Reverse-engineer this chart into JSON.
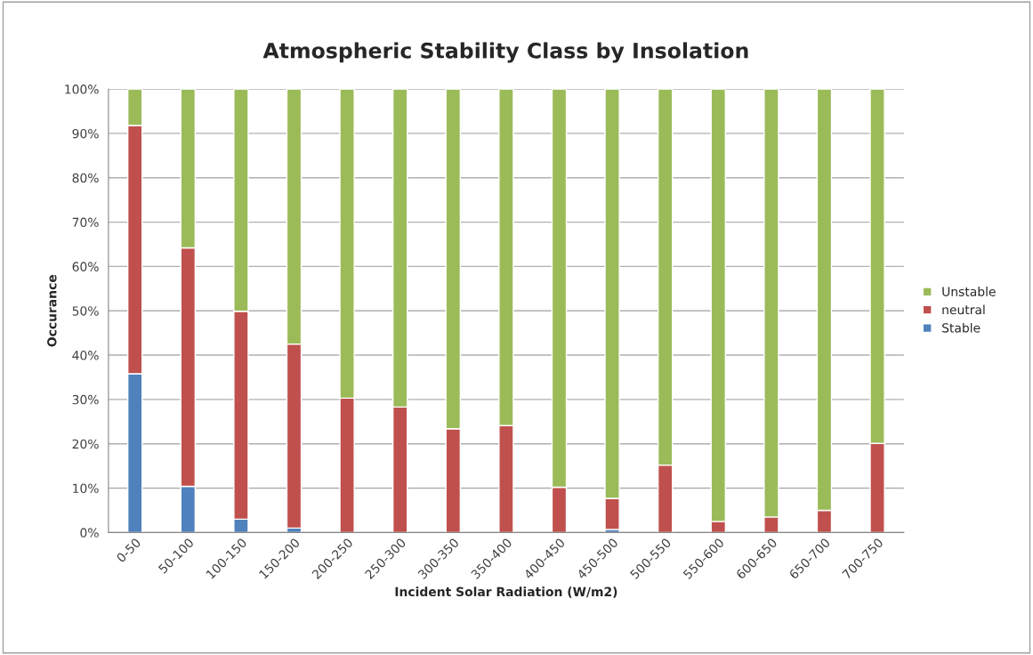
{
  "chart_data": {
    "type": "bar",
    "title": "Atmospheric Stability Class by Insolation",
    "xlabel": "Incident Solar Radiation (W/m2)",
    "ylabel": "Occurance",
    "categories": [
      "0-50",
      "50-100",
      "100-150",
      "150-200",
      "200-250",
      "250-300",
      "300-350",
      "350-400",
      "400-450",
      "450-500",
      "500-550",
      "550-600",
      "600-650",
      "650-700",
      "700-750"
    ],
    "stacked": true,
    "series": [
      {
        "name": "Stable",
        "color": "#4f81bd",
        "values": [
          35.8,
          10.4,
          3.0,
          1.0,
          0,
          0,
          0,
          0,
          0,
          0.7,
          0,
          0,
          0,
          0,
          0
        ]
      },
      {
        "name": "neutral",
        "color": "#c0504d",
        "values": [
          56.0,
          53.8,
          46.9,
          41.5,
          30.3,
          28.3,
          23.4,
          24.1,
          10.2,
          7.0,
          15.2,
          2.5,
          3.5,
          5.0,
          20.1
        ]
      },
      {
        "name": "Unstable",
        "color": "#9bbb59",
        "values": [
          8.2,
          35.8,
          50.1,
          57.5,
          69.7,
          71.7,
          76.6,
          75.9,
          89.8,
          92.3,
          84.8,
          97.5,
          96.5,
          95.0,
          79.9
        ]
      }
    ],
    "ylim": [
      0,
      100
    ],
    "yticks": [
      {
        "value": 0,
        "label": "0%"
      },
      {
        "value": 10,
        "label": "10%"
      },
      {
        "value": 20,
        "label": "20%"
      },
      {
        "value": 30,
        "label": "30%"
      },
      {
        "value": 40,
        "label": "40%"
      },
      {
        "value": 50,
        "label": "50%"
      },
      {
        "value": 60,
        "label": "60%"
      },
      {
        "value": 70,
        "label": "70%"
      },
      {
        "value": 80,
        "label": "80%"
      },
      {
        "value": 90,
        "label": "90%"
      },
      {
        "value": 100,
        "label": "100%"
      }
    ],
    "grid": "y",
    "legend": "right"
  }
}
